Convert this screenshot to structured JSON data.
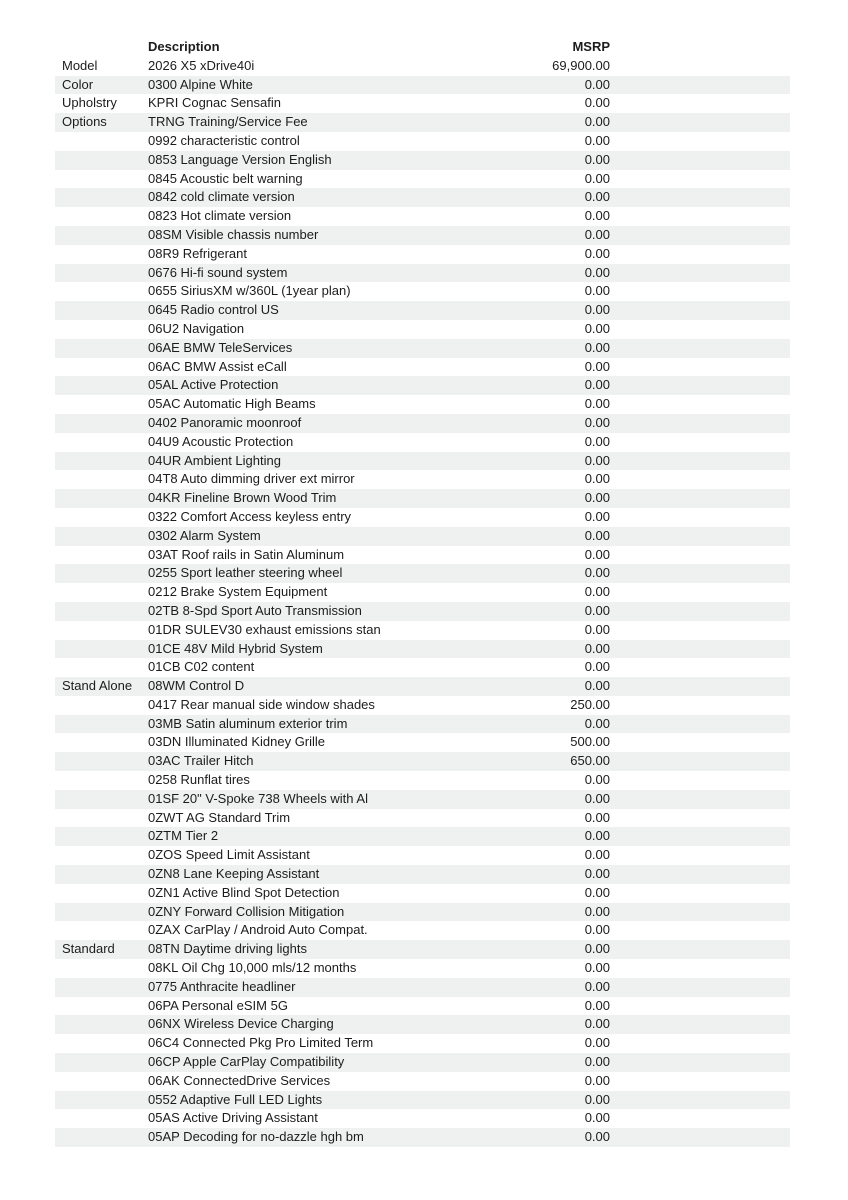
{
  "document": {
    "type": "vehicle-option-pricing-sheet",
    "colors": {
      "page_background": "#ffffff",
      "row_stripe": "#eff1f1",
      "text": "#1c1c1c"
    },
    "header": {
      "group_label": "",
      "description_label": "Description",
      "msrp_label": "MSRP"
    },
    "rows": [
      {
        "group": "Model",
        "desc": "2026 X5 xDrive40i",
        "msrp": "69,900.00"
      },
      {
        "group": "Color",
        "desc": "0300 Alpine White",
        "msrp": "0.00"
      },
      {
        "group": "Upholstry",
        "desc": "KPRI Cognac Sensafin",
        "msrp": "0.00"
      },
      {
        "group": "Options",
        "desc": "TRNG Training/Service Fee",
        "msrp": "0.00"
      },
      {
        "group": "",
        "desc": "0992 characteristic control",
        "msrp": "0.00"
      },
      {
        "group": "",
        "desc": "0853 Language Version English",
        "msrp": "0.00"
      },
      {
        "group": "",
        "desc": "0845 Acoustic belt warning",
        "msrp": "0.00"
      },
      {
        "group": "",
        "desc": "0842 cold climate version",
        "msrp": "0.00"
      },
      {
        "group": "",
        "desc": "0823 Hot climate version",
        "msrp": "0.00"
      },
      {
        "group": "",
        "desc": "08SM Visible chassis number",
        "msrp": "0.00"
      },
      {
        "group": "",
        "desc": "08R9 Refrigerant",
        "msrp": "0.00"
      },
      {
        "group": "",
        "desc": "0676 Hi-fi sound system",
        "msrp": "0.00"
      },
      {
        "group": "",
        "desc": "0655 SiriusXM w/360L (1year plan)",
        "msrp": "0.00"
      },
      {
        "group": "",
        "desc": "0645 Radio control US",
        "msrp": "0.00"
      },
      {
        "group": "",
        "desc": "06U2 Navigation",
        "msrp": "0.00"
      },
      {
        "group": "",
        "desc": "06AE BMW TeleServices",
        "msrp": "0.00"
      },
      {
        "group": "",
        "desc": "06AC BMW Assist eCall",
        "msrp": "0.00"
      },
      {
        "group": "",
        "desc": "05AL Active Protection",
        "msrp": "0.00"
      },
      {
        "group": "",
        "desc": "05AC Automatic High Beams",
        "msrp": "0.00"
      },
      {
        "group": "",
        "desc": "0402 Panoramic moonroof",
        "msrp": "0.00"
      },
      {
        "group": "",
        "desc": "04U9 Acoustic Protection",
        "msrp": "0.00"
      },
      {
        "group": "",
        "desc": "04UR Ambient Lighting",
        "msrp": "0.00"
      },
      {
        "group": "",
        "desc": "04T8 Auto dimming driver ext mirror",
        "msrp": "0.00"
      },
      {
        "group": "",
        "desc": "04KR Fineline Brown Wood Trim",
        "msrp": "0.00"
      },
      {
        "group": "",
        "desc": "0322 Comfort Access keyless entry",
        "msrp": "0.00"
      },
      {
        "group": "",
        "desc": "0302 Alarm System",
        "msrp": "0.00"
      },
      {
        "group": "",
        "desc": "03AT Roof rails in Satin Aluminum",
        "msrp": "0.00"
      },
      {
        "group": "",
        "desc": "0255 Sport leather steering wheel",
        "msrp": "0.00"
      },
      {
        "group": "",
        "desc": "0212 Brake System Equipment",
        "msrp": "0.00"
      },
      {
        "group": "",
        "desc": "02TB 8-Spd Sport Auto Transmission",
        "msrp": "0.00"
      },
      {
        "group": "",
        "desc": "01DR SULEV30 exhaust emissions stan",
        "msrp": "0.00"
      },
      {
        "group": "",
        "desc": "01CE 48V Mild Hybrid System",
        "msrp": "0.00"
      },
      {
        "group": "",
        "desc": "01CB C02 content",
        "msrp": "0.00"
      },
      {
        "group": "Stand Alone",
        "desc": "08WM Control D",
        "msrp": "0.00"
      },
      {
        "group": "",
        "desc": "0417 Rear manual side window shades",
        "msrp": "250.00"
      },
      {
        "group": "",
        "desc": "03MB Satin aluminum exterior trim",
        "msrp": "0.00"
      },
      {
        "group": "",
        "desc": "03DN Illuminated Kidney Grille",
        "msrp": "500.00"
      },
      {
        "group": "",
        "desc": "03AC Trailer Hitch",
        "msrp": "650.00"
      },
      {
        "group": "",
        "desc": "0258 Runflat tires",
        "msrp": "0.00"
      },
      {
        "group": "",
        "desc": "01SF 20\" V-Spoke 738 Wheels with Al",
        "msrp": "0.00"
      },
      {
        "group": "",
        "desc": "0ZWT AG Standard Trim",
        "msrp": "0.00"
      },
      {
        "group": "",
        "desc": "0ZTM Tier 2",
        "msrp": "0.00"
      },
      {
        "group": "",
        "desc": "0ZOS Speed Limit Assistant",
        "msrp": "0.00"
      },
      {
        "group": "",
        "desc": "0ZN8 Lane Keeping Assistant",
        "msrp": "0.00"
      },
      {
        "group": "",
        "desc": "0ZN1 Active Blind Spot Detection",
        "msrp": "0.00"
      },
      {
        "group": "",
        "desc": "0ZNY Forward Collision Mitigation",
        "msrp": "0.00"
      },
      {
        "group": "",
        "desc": "0ZAX CarPlay / Android Auto Compat.",
        "msrp": "0.00"
      },
      {
        "group": "Standard",
        "desc": "08TN Daytime driving lights",
        "msrp": "0.00"
      },
      {
        "group": "",
        "desc": "08KL Oil Chg 10,000 mls/12 months",
        "msrp": "0.00"
      },
      {
        "group": "",
        "desc": "0775 Anthracite headliner",
        "msrp": "0.00"
      },
      {
        "group": "",
        "desc": "06PA Personal eSIM 5G",
        "msrp": "0.00"
      },
      {
        "group": "",
        "desc": "06NX Wireless Device Charging",
        "msrp": "0.00"
      },
      {
        "group": "",
        "desc": "06C4 Connected Pkg Pro Limited Term",
        "msrp": "0.00"
      },
      {
        "group": "",
        "desc": "06CP Apple CarPlay Compatibility",
        "msrp": "0.00"
      },
      {
        "group": "",
        "desc": "06AK ConnectedDrive Services",
        "msrp": "0.00"
      },
      {
        "group": "",
        "desc": "0552 Adaptive Full LED Lights",
        "msrp": "0.00"
      },
      {
        "group": "",
        "desc": "05AS Active Driving Assistant",
        "msrp": "0.00"
      },
      {
        "group": "",
        "desc": "05AP Decoding for no-dazzle hgh bm",
        "msrp": "0.00"
      }
    ]
  }
}
